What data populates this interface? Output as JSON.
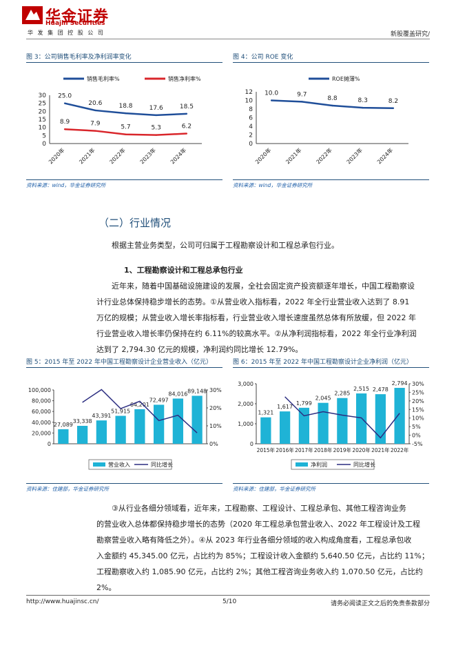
{
  "header": {
    "logo_cn": "华金证券",
    "logo_en": "Huajin Securities",
    "company": "华 发 集 团 控 股 公 司",
    "report_type": "新股覆盖研究/"
  },
  "fig3": {
    "title": "图 3：公司销售毛利率及净利润率变化",
    "source": "资料来源：wind，华金证券研究所"
  },
  "fig4": {
    "title": "图 4：公司 ROE 变化",
    "source": "资料来源：wind，华金证券研究所"
  },
  "fig5": {
    "title": "图 5：2015 年至 2022 年中国工程勘察设计企业营业收入（亿元）",
    "source": "资料来源：住建部，华金证券研究所"
  },
  "fig6": {
    "title": "图 6：2015 年至 2022 年中国工程勘察设计企业净利润（亿元）",
    "source": "资料来源：住建部，华金证券研究所"
  },
  "section": {
    "title": "（二）行业情况",
    "intro": "根据主营业务类型，公司可归属于工程勘察设计和工程总承包行业。",
    "subhead": "1、工程勘察设计和工程总承包行业",
    "para1_lines": [
      "近年来，随着中国基础设施建设的发展，全社会固定资产投资额逐年增长，中国工程勘察设",
      "计行业总体保持稳步增长的态势。①从营业收入指标看，2022 年全行业营业收入达到了 8.91",
      "万亿的规模；从营业收入增长率指标看，行业营业收入增长速度虽然总体有所放缓，但 2022 年",
      "行业营业收入增长率仍保持在约 6.11%的较高水平。②从净利润指标看，2022 年全行业净利润",
      "达到了 2,794.30 亿元的规模，净利润约同比增长 12.79%。"
    ],
    "para2_lines": [
      "③从行业各细分领域看，近年来，工程勘察、工程设计、工程总承包、其他工程咨询业务",
      "的营业收入总体都保持稳步增长的态势（2020 年工程总承包营业收入、2022 年工程设计及工程",
      "勘察营业收入略有降低之外）。④从 2023 年行业各细分领域的收入构成角度看，工程总承包收",
      "入金额约 45,345.00 亿元，占比约为 85%；工程设计收入金额约 5,640.50 亿元，占比约 11%；",
      "工程勘察收入约 1,085.90 亿元，占比约 2%；其他工程咨询业务收入约 1,070.50 亿元，占比约",
      "2%。"
    ]
  },
  "footer": {
    "url": "http://www.huajinsc.cn/",
    "page": "5/10",
    "disclaimer": "请务必阅读正文之后的免责条款部分"
  },
  "colors": {
    "brand_red": "#c00000",
    "heading_blue": "#1f4e79",
    "series_blue": "#1f4e99",
    "series_red": "#d9262b",
    "bar_cyan": "#1fb3d6",
    "line_navy": "#2b2d80"
  },
  "chart_data": [
    {
      "id": "fig3",
      "type": "line",
      "categories": [
        "2020年",
        "2021年",
        "2022年",
        "2023年",
        "2024年"
      ],
      "series": [
        {
          "name": "销售毛利率%",
          "values": [
            25.0,
            20.6,
            18.8,
            17.6,
            18.5
          ],
          "labels": [
            "25.0",
            "20.6",
            "18.8",
            "17.6",
            "18.5"
          ],
          "color": "#1f4e99"
        },
        {
          "name": "销售净利率%",
          "values": [
            8.9,
            7.9,
            5.7,
            5.3,
            6.2
          ],
          "labels": [
            "8.9",
            "7.9",
            "5.7",
            "5.3",
            "6.2"
          ],
          "color": "#d9262b"
        }
      ],
      "ylim": [
        0,
        30
      ],
      "yticks": [
        "0",
        "5",
        "10",
        "15",
        "20",
        "25",
        "30"
      ],
      "legend": "top"
    },
    {
      "id": "fig4",
      "type": "line",
      "categories": [
        "2020年",
        "2021年",
        "2022年",
        "2023年",
        "2024年"
      ],
      "series": [
        {
          "name": "ROE摊薄%",
          "values": [
            10.0,
            9.7,
            8.8,
            8.3,
            8.2
          ],
          "labels": [
            "10.0",
            "9.7",
            "8.8",
            "8.3",
            "8.2"
          ],
          "color": "#1f4e99"
        }
      ],
      "ylim": [
        0,
        12
      ],
      "yticks": [
        "0",
        "2",
        "4",
        "6",
        "8",
        "10",
        "12"
      ],
      "legend": "top"
    },
    {
      "id": "fig5",
      "type": "bar",
      "categories": [
        "2015",
        "2016",
        "2017",
        "2018",
        "2019",
        "2020",
        "2021",
        "2022"
      ],
      "series": [
        {
          "name": "营业收入",
          "values": [
            27089,
            33338,
            43391,
            51915,
            64201,
            72497,
            84016,
            89148
          ],
          "labels": [
            "27,089",
            "33,338",
            "43,391",
            "51,915",
            "64,201",
            "72,497",
            "84,016",
            "89,148"
          ],
          "color": "#1fb3d6"
        },
        {
          "name": "同比增长",
          "values": [
            null,
            23.1,
            30.2,
            19.6,
            23.7,
            12.9,
            15.9,
            6.1
          ],
          "color": "#2b2d80",
          "axis": "right"
        }
      ],
      "ylim": [
        0,
        100000
      ],
      "yticks": [
        "0",
        "20,000",
        "40,000",
        "60,000",
        "80,000",
        "100,000"
      ],
      "y2lim": [
        0,
        30
      ],
      "y2ticks": [
        "0%",
        "10%",
        "20%",
        "30%"
      ],
      "legend": "bottom"
    },
    {
      "id": "fig6",
      "type": "bar",
      "categories": [
        "2015年",
        "2016年",
        "2017年",
        "2018年",
        "2019年",
        "2020年",
        "2021年",
        "2022年"
      ],
      "series": [
        {
          "name": "净利润",
          "values": [
            1321,
            1617,
            1799,
            2045,
            2285,
            2515,
            2478,
            2794
          ],
          "labels": [
            "1,321",
            "1,617",
            "1,799",
            "2,045",
            "2,285",
            "2,515",
            "2,478",
            "2,794"
          ],
          "color": "#1fb3d6"
        },
        {
          "name": "同比增长",
          "values": [
            null,
            22.4,
            11.3,
            13.7,
            11.7,
            10.1,
            -1.5,
            12.8
          ],
          "color": "#2b2d80",
          "axis": "right"
        }
      ],
      "ylim": [
        0,
        3000
      ],
      "yticks": [
        "0",
        "1,000",
        "2,000",
        "3,000"
      ],
      "y2lim": [
        -5,
        30
      ],
      "y2ticks": [
        "-5%",
        "0%",
        "5%",
        "10%",
        "15%",
        "20%",
        "25%",
        "30%"
      ],
      "legend": "bottom"
    }
  ]
}
